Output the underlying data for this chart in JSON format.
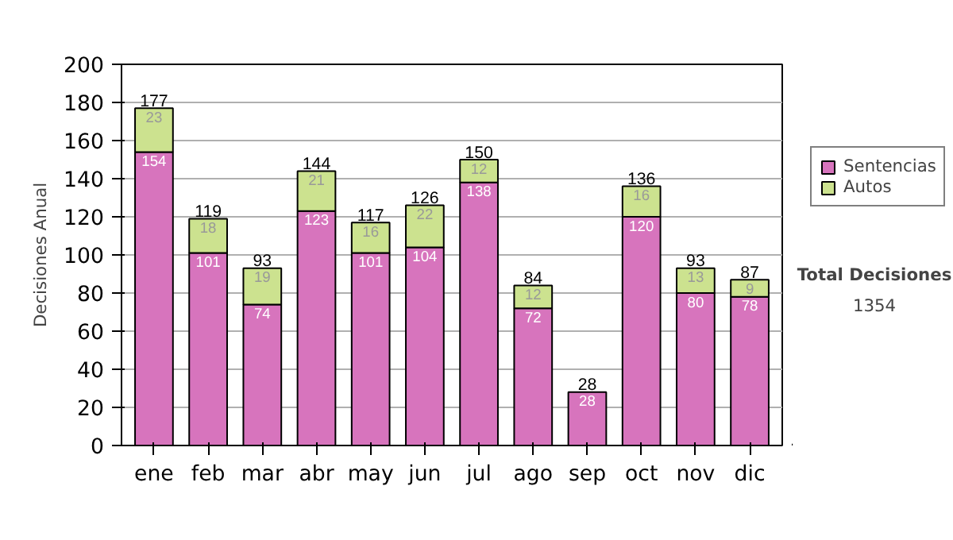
{
  "chart_data": {
    "type": "bar",
    "stacked": true,
    "ylabel": "Decisiones Anual",
    "categories": [
      "ene",
      "feb",
      "mar",
      "abr",
      "may",
      "jun",
      "jul",
      "ago",
      "sep",
      "oct",
      "nov",
      "dic"
    ],
    "series": [
      {
        "name": "Sentencias",
        "color": "#d774bd",
        "values": [
          154,
          101,
          74,
          123,
          101,
          104,
          138,
          72,
          28,
          120,
          80,
          78
        ],
        "value_labels": [
          "154",
          "101",
          "74",
          "123",
          "101",
          "104",
          "138",
          "72",
          "28",
          "120",
          "80",
          "78"
        ]
      },
      {
        "name": "Autos",
        "color": "#cce28f",
        "values": [
          23,
          18,
          19,
          21,
          16,
          22,
          12,
          12,
          0,
          16,
          13,
          9
        ],
        "value_labels": [
          "23",
          "18",
          "19",
          "21",
          "16",
          "22",
          "12",
          "12",
          null,
          "16",
          "13",
          "9"
        ]
      }
    ],
    "totals": [
      "177",
      "119",
      "93",
      "144",
      "117",
      "126",
      "150",
      "84",
      "28",
      "136",
      "93",
      "87"
    ],
    "ylim": [
      0,
      200
    ],
    "yticks": [
      0,
      20,
      40,
      60,
      80,
      100,
      120,
      140,
      160,
      180,
      200
    ],
    "grid": "y",
    "legend": "right",
    "annotations": [
      "Total Decisiones",
      "1354"
    ]
  }
}
